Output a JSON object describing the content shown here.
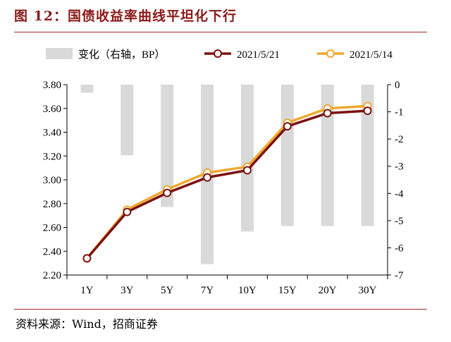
{
  "figure": {
    "title": "图 12：国债收益率曲线平坦化下行",
    "source": "资料来源：Wind，招商证券"
  },
  "chart_data": {
    "type": "bar+line",
    "categories": [
      "1Y",
      "3Y",
      "5Y",
      "7Y",
      "10Y",
      "15Y",
      "20Y",
      "30Y"
    ],
    "left_axis": {
      "ylim": [
        2.2,
        3.8
      ],
      "ticks": [
        "2.20",
        "2.40",
        "2.60",
        "2.80",
        "3.00",
        "3.20",
        "3.40",
        "3.60",
        "3.80"
      ]
    },
    "right_axis": {
      "ylim": [
        -7,
        0
      ],
      "ticks": [
        "0",
        "-1",
        "-2",
        "-3",
        "-4",
        "-5",
        "-6",
        "-7"
      ]
    },
    "bar_series": {
      "name": "变化（右轴，BP）",
      "axis": "right",
      "color": "#d9d9d9",
      "values": [
        -0.3,
        -2.6,
        -4.5,
        -6.6,
        -5.4,
        -5.2,
        -5.2,
        -5.2
      ]
    },
    "line_series": [
      {
        "name": "2021/5/21",
        "axis": "left",
        "color": "#7b1111",
        "values": [
          2.34,
          2.73,
          2.89,
          3.02,
          3.08,
          3.45,
          3.56,
          3.58
        ]
      },
      {
        "name": "2021/5/14",
        "axis": "left",
        "color": "#f0a830",
        "values": [
          2.34,
          2.75,
          2.92,
          3.06,
          3.11,
          3.48,
          3.6,
          3.62
        ]
      }
    ],
    "legend_position": "top",
    "grid": false,
    "colors": {
      "title": "#8b1a1a",
      "rule": "#9c2a2a"
    }
  }
}
